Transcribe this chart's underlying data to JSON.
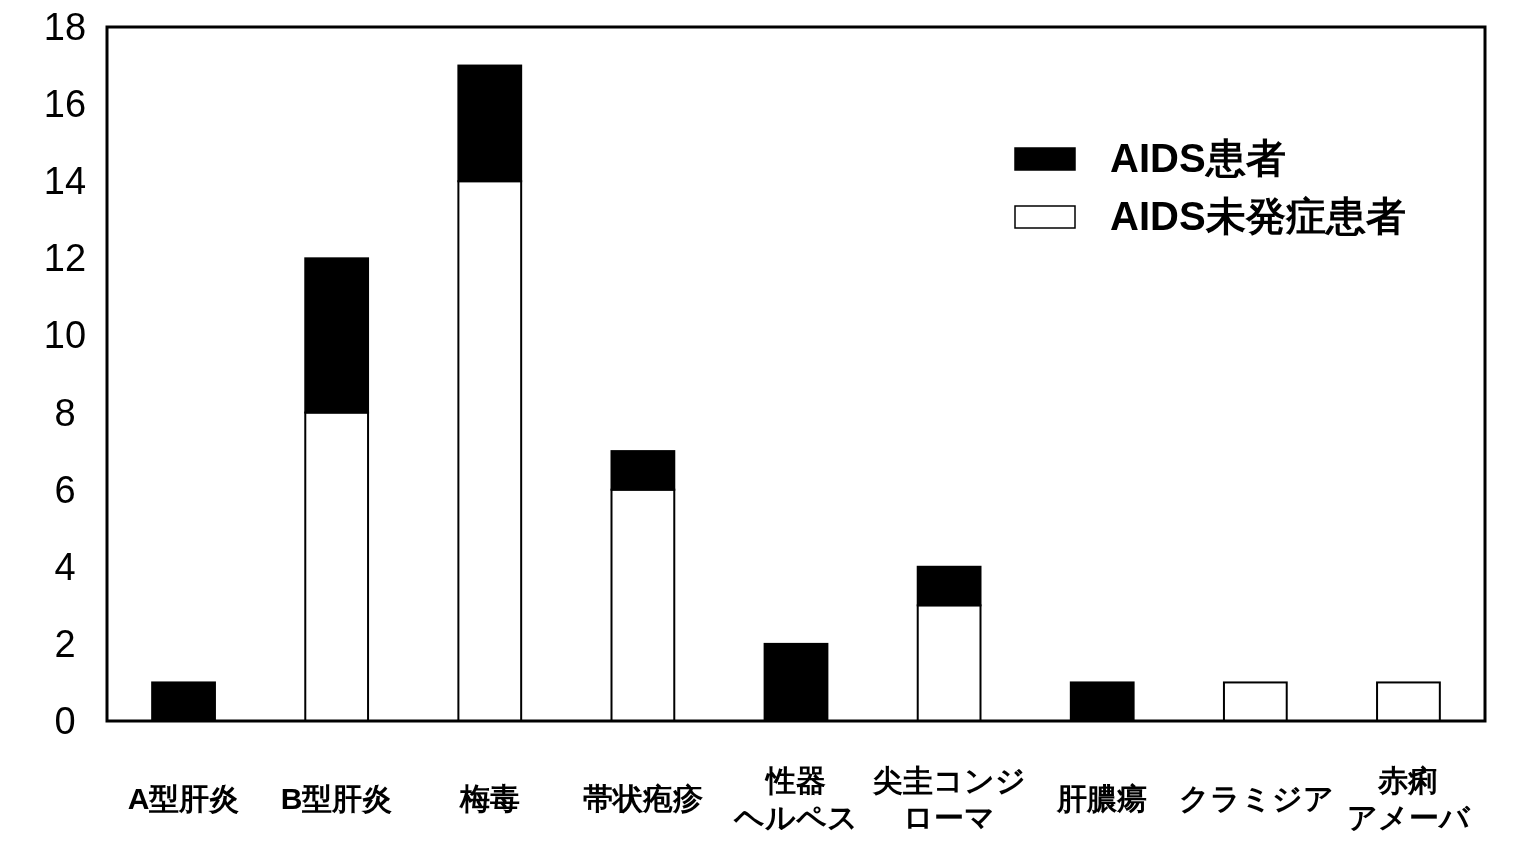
{
  "chart_data": {
    "type": "bar",
    "stacked": true,
    "categories": [
      "A型肝炎",
      "B型肝炎",
      "梅毒",
      "帯状疱疹",
      "性器ヘルペス",
      "尖圭コンジローマ",
      "肝膿瘍",
      "クラミジア",
      "赤痢アメーバ"
    ],
    "series": [
      {
        "name": "AIDS未発症患者",
        "color": "#ffffff",
        "values": [
          0,
          8,
          14,
          6,
          0,
          3,
          0,
          1,
          1
        ]
      },
      {
        "name": "AIDS患者",
        "color": "#000000",
        "values": [
          1,
          4,
          3,
          1,
          2,
          1,
          1,
          0,
          0
        ]
      }
    ],
    "ylim": [
      0,
      18
    ],
    "yticks": [
      0,
      2,
      4,
      6,
      8,
      10,
      12,
      14,
      16,
      18
    ],
    "legend": "top right"
  }
}
